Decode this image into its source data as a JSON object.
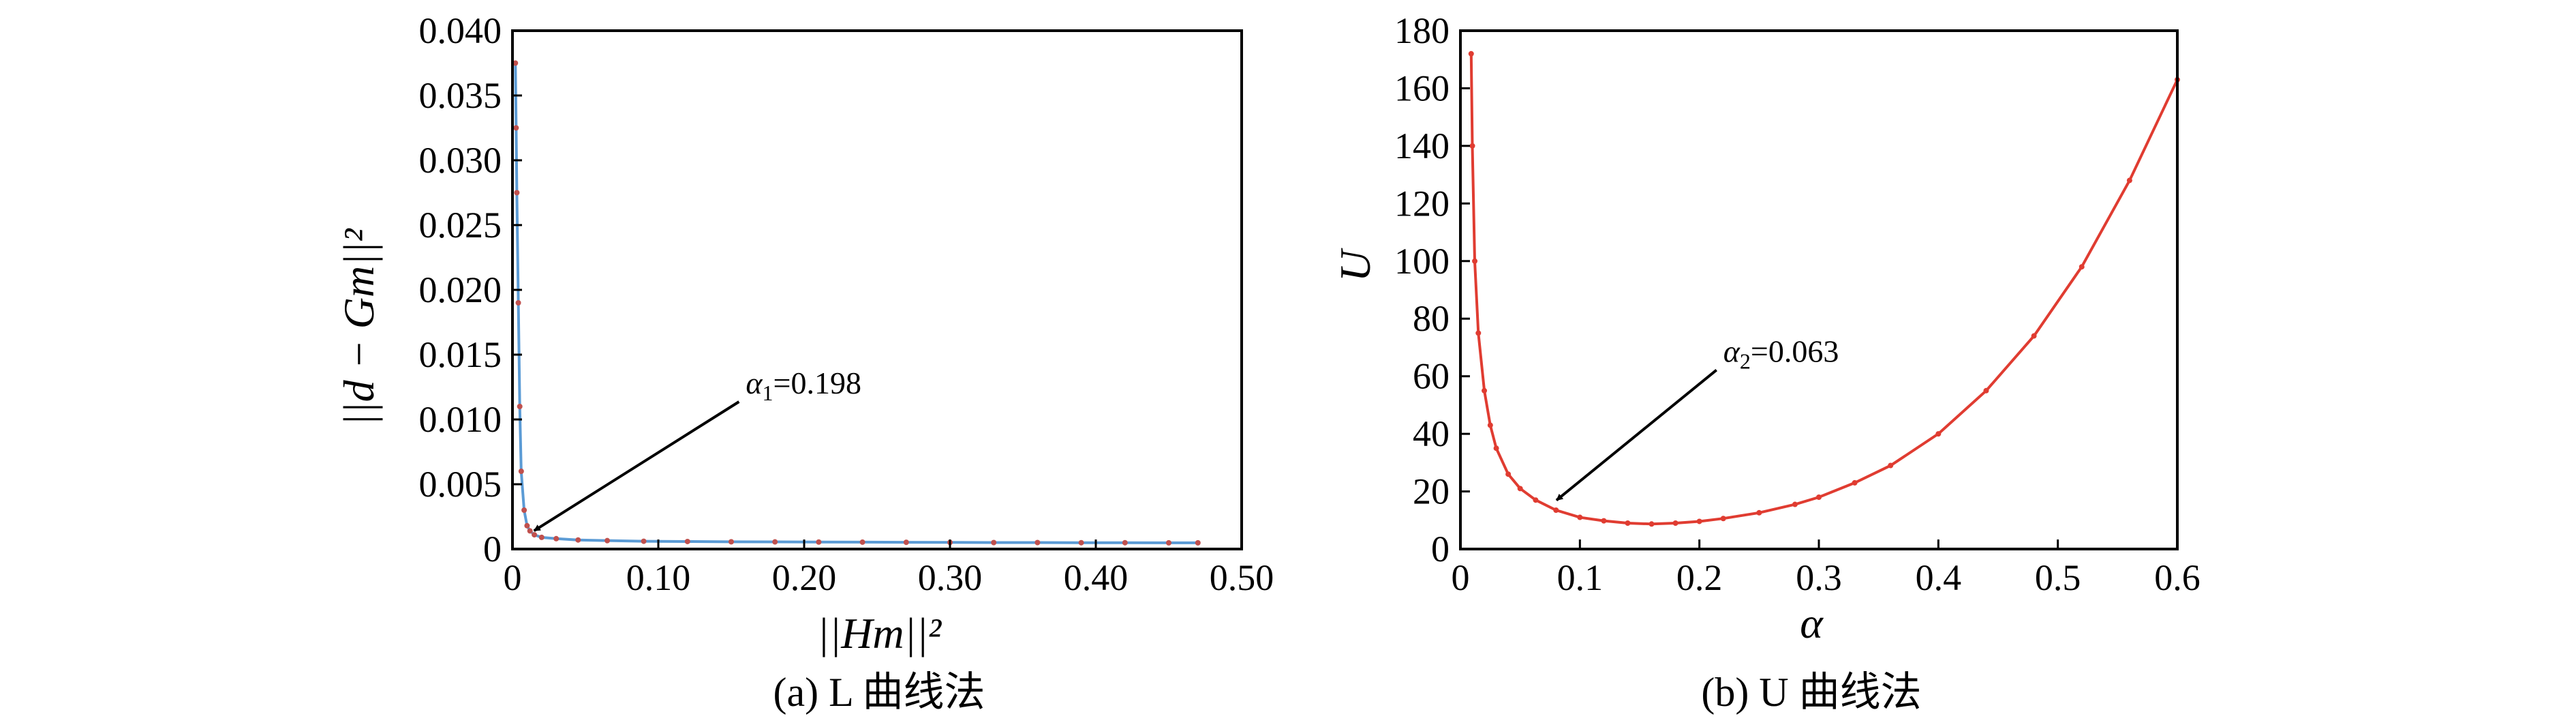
{
  "chart_data": [
    {
      "type": "line",
      "panel_caption": "(a) L 曲线法",
      "xlabel": "||Hm||²",
      "ylabel": "||d − Gm||²",
      "xlim": [
        0,
        0.5
      ],
      "ylim": [
        0,
        0.04
      ],
      "x_ticks": [
        "0",
        "0.10",
        "0.20",
        "0.30",
        "0.40",
        "0.50"
      ],
      "y_ticks": [
        "0",
        "0.005",
        "0.010",
        "0.015",
        "0.020",
        "0.025",
        "0.030",
        "0.035",
        "0.040"
      ],
      "x_tick_values": [
        0,
        0.1,
        0.2,
        0.3,
        0.4,
        0.5
      ],
      "y_tick_values": [
        0,
        0.005,
        0.01,
        0.015,
        0.02,
        0.025,
        0.03,
        0.035,
        0.04
      ],
      "series": [
        {
          "color": "#5b9bd5",
          "marker_color": "#c0504d",
          "x": [
            0.002,
            0.0025,
            0.003,
            0.004,
            0.005,
            0.006,
            0.008,
            0.01,
            0.012,
            0.015,
            0.02,
            0.03,
            0.045,
            0.065,
            0.09,
            0.12,
            0.15,
            0.18,
            0.21,
            0.24,
            0.27,
            0.3,
            0.33,
            0.36,
            0.39,
            0.42,
            0.45,
            0.47
          ],
          "y": [
            0.0375,
            0.0325,
            0.0275,
            0.019,
            0.011,
            0.006,
            0.003,
            0.0018,
            0.0014,
            0.0011,
            0.0009,
            0.0008,
            0.0007,
            0.00065,
            0.0006,
            0.00058,
            0.00056,
            0.00055,
            0.00054,
            0.00053,
            0.00052,
            0.00051,
            0.0005,
            0.0005,
            0.00049,
            0.00049,
            0.00048,
            0.00048
          ]
        }
      ],
      "annotation": {
        "text_main": "α",
        "text_sub": "1",
        "text_value": "=0.198",
        "point": [
          0.012,
          0.0012
        ],
        "text_at": [
          0.16,
          0.012
        ]
      }
    },
    {
      "type": "line",
      "panel_caption": "(b) U 曲线法",
      "xlabel": "α",
      "ylabel": "U",
      "xlim": [
        0,
        0.6
      ],
      "ylim": [
        0,
        180
      ],
      "x_ticks": [
        "0",
        "0.1",
        "0.2",
        "0.3",
        "0.4",
        "0.5",
        "0.6"
      ],
      "y_ticks": [
        "0",
        "20",
        "40",
        "60",
        "80",
        "100",
        "120",
        "140",
        "160",
        "180"
      ],
      "x_tick_values": [
        0,
        0.1,
        0.2,
        0.3,
        0.4,
        0.5,
        0.6
      ],
      "y_tick_values": [
        0,
        20,
        40,
        60,
        80,
        100,
        120,
        140,
        160,
        180
      ],
      "series": [
        {
          "color": "#e03c31",
          "x": [
            0.009,
            0.01,
            0.012,
            0.015,
            0.02,
            0.025,
            0.03,
            0.04,
            0.05,
            0.063,
            0.08,
            0.1,
            0.12,
            0.14,
            0.16,
            0.18,
            0.2,
            0.22,
            0.25,
            0.28,
            0.3,
            0.33,
            0.36,
            0.4,
            0.44,
            0.48,
            0.52,
            0.56,
            0.6
          ],
          "y": [
            172,
            140,
            100,
            75,
            55,
            43,
            35,
            26,
            21,
            17,
            13.5,
            11,
            9.8,
            9,
            8.7,
            9,
            9.6,
            10.6,
            12.6,
            15.5,
            18,
            23,
            29,
            40,
            55,
            74,
            98,
            128,
            163
          ]
        }
      ],
      "annotation": {
        "text_main": "α",
        "text_sub": "2",
        "text_value": "=0.063",
        "point": [
          0.077,
          16
        ],
        "text_at": [
          0.22,
          65
        ]
      }
    }
  ]
}
